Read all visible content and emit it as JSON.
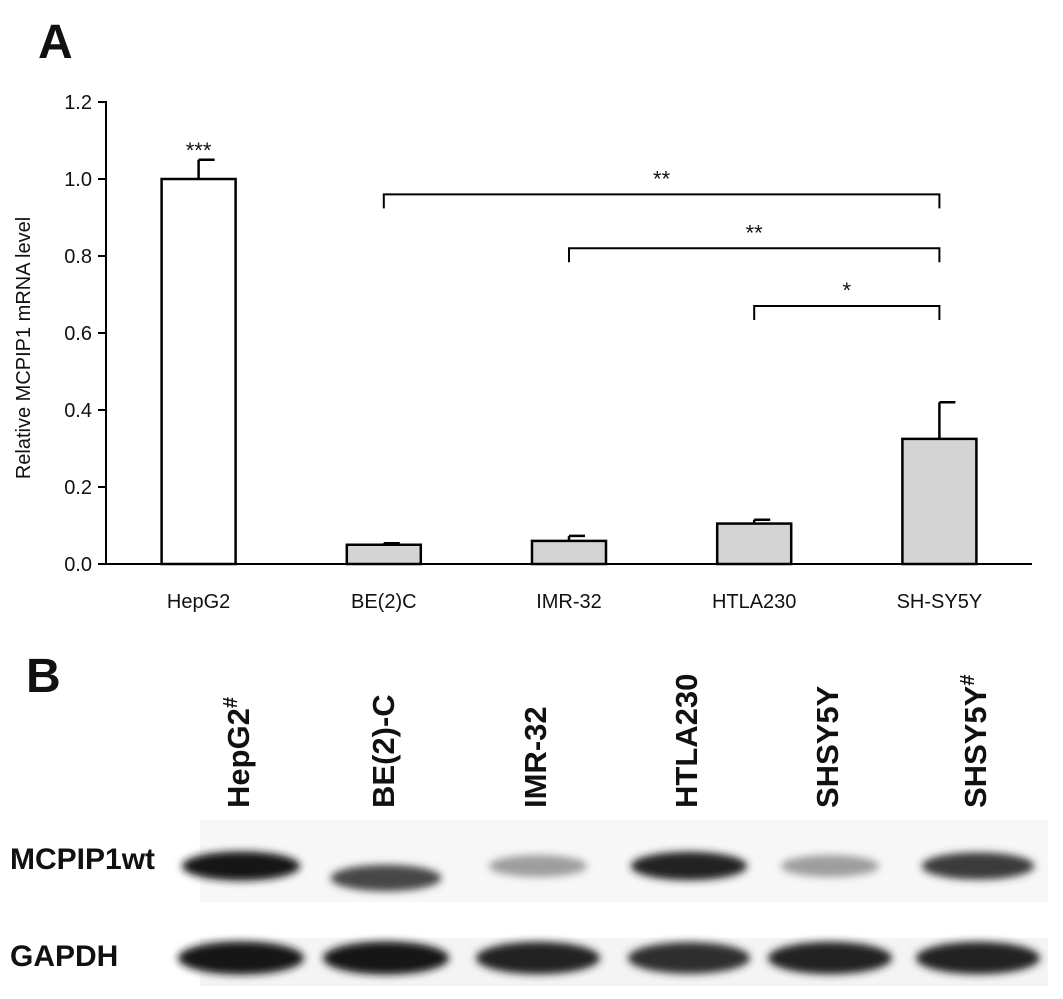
{
  "panel_a": {
    "label": "A"
  },
  "panel_b": {
    "label": "B"
  },
  "chart_data": {
    "type": "bar",
    "ylabel": "Relative MCPIP1 mRNA level",
    "ylim": [
      0,
      1.2
    ],
    "yticks": [
      "0.0",
      "0.2",
      "0.4",
      "0.6",
      "0.8",
      "1.0",
      "1.2"
    ],
    "categories": [
      "HepG2",
      "BE(2)C",
      "IMR-32",
      "HTLA230",
      "SH-SY5Y"
    ],
    "values": [
      1.0,
      0.05,
      0.06,
      0.105,
      0.325
    ],
    "errors": [
      0.05,
      0.004,
      0.013,
      0.01,
      0.095
    ],
    "bar_colors": [
      "#ffffff",
      "#d4d4d4",
      "#d4d4d4",
      "#d4d4d4",
      "#d4d4d4"
    ],
    "bar_annotations": [
      {
        "category": "HepG2",
        "text": "***"
      }
    ],
    "significance_brackets": [
      {
        "from": "BE(2)C",
        "to": "SH-SY5Y",
        "text": "**",
        "y": 0.96
      },
      {
        "from": "IMR-32",
        "to": "SH-SY5Y",
        "text": "**",
        "y": 0.82
      },
      {
        "from": "HTLA230",
        "to": "SH-SY5Y",
        "text": "*",
        "y": 0.67
      }
    ],
    "grid": false
  },
  "blot": {
    "lanes": [
      {
        "name": "HepG2",
        "mark": "#"
      },
      {
        "name": "BE(2)-C",
        "mark": ""
      },
      {
        "name": "IMR-32",
        "mark": ""
      },
      {
        "name": "HTLA230",
        "mark": ""
      },
      {
        "name": "SHSY5Y",
        "mark": ""
      },
      {
        "name": "SHSY5Y",
        "mark": "#"
      }
    ],
    "rows": [
      {
        "label": "MCPIP1wt",
        "intensities": [
          0.95,
          0.75,
          0.4,
          0.9,
          0.4,
          0.8
        ]
      },
      {
        "label": "GAPDH",
        "intensities": [
          0.95,
          0.95,
          0.9,
          0.85,
          0.9,
          0.9
        ]
      }
    ]
  }
}
